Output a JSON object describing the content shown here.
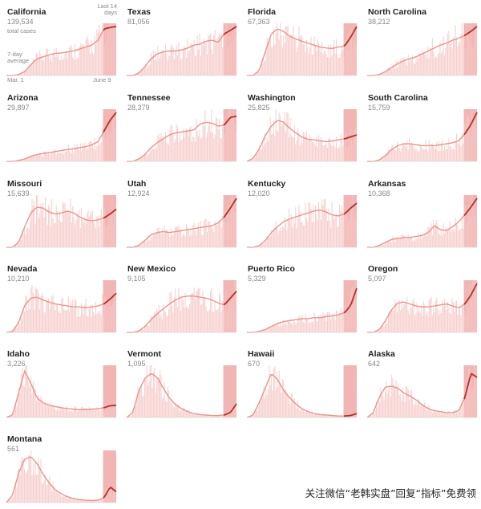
{
  "legend": {
    "total_cases": "total cases",
    "avg": "7-day average",
    "last": "Last 14 days",
    "start": "Mar. 1",
    "end": "June 9"
  },
  "colors": {
    "bar": "#f6cfcd",
    "recent_bg": "#eda3a1",
    "line_early": "#e8958f",
    "line_recent": "#b5312a",
    "baseline": "#d8d8d8"
  },
  "watermark": "关注微信“老韩实盘”回复“指标”免费领",
  "chart_data": {
    "type": "bar",
    "x_range": [
      "Mar. 1",
      "June 9"
    ],
    "recent_window_days": 14,
    "grid": false,
    "panels": [
      {
        "state": "California",
        "cases": "139,534",
        "trend": [
          0,
          0,
          2,
          8,
          22,
          34,
          38,
          42,
          45,
          46,
          48,
          50,
          54,
          58,
          62,
          72,
          95,
          98,
          100
        ]
      },
      {
        "state": "Texas",
        "cases": "81,056",
        "trend": [
          0,
          0,
          5,
          18,
          34,
          44,
          48,
          50,
          50,
          52,
          56,
          62,
          64,
          70,
          72,
          68,
          85,
          92,
          100
        ]
      },
      {
        "state": "Florida",
        "cases": "67,363",
        "trend": [
          0,
          0,
          10,
          48,
          85,
          95,
          90,
          80,
          75,
          70,
          66,
          62,
          58,
          56,
          55,
          58,
          60,
          78,
          100
        ]
      },
      {
        "state": "North Carolina",
        "cases": "38,212",
        "trend": [
          0,
          0,
          2,
          8,
          16,
          24,
          30,
          34,
          38,
          44,
          50,
          56,
          62,
          66,
          72,
          76,
          82,
          90,
          100
        ]
      },
      {
        "state": "Arizona",
        "cases": "29,897",
        "trend": [
          0,
          0,
          2,
          5,
          10,
          14,
          16,
          18,
          20,
          22,
          24,
          26,
          28,
          30,
          34,
          40,
          62,
          84,
          100
        ]
      },
      {
        "state": "Tennessee",
        "cases": "28,379",
        "trend": [
          0,
          0,
          5,
          14,
          28,
          38,
          46,
          54,
          58,
          60,
          62,
          64,
          76,
          80,
          78,
          72,
          74,
          90,
          92
        ]
      },
      {
        "state": "Washington",
        "cases": "25,825",
        "trend": [
          0,
          6,
          25,
          52,
          72,
          84,
          80,
          68,
          58,
          50,
          45,
          44,
          42,
          40,
          42,
          44,
          46,
          50,
          54
        ]
      },
      {
        "state": "South Carolina",
        "cases": "15,759",
        "trend": [
          0,
          0,
          3,
          12,
          24,
          32,
          36,
          36,
          34,
          32,
          32,
          32,
          34,
          36,
          38,
          42,
          56,
          75,
          100
        ]
      },
      {
        "state": "Missouri",
        "cases": "15,639",
        "trend": [
          0,
          0,
          10,
          42,
          70,
          82,
          80,
          72,
          68,
          70,
          74,
          70,
          62,
          56,
          54,
          56,
          60,
          68,
          78
        ]
      },
      {
        "state": "Utah",
        "cases": "12,924",
        "trend": [
          0,
          0,
          4,
          14,
          26,
          30,
          32,
          30,
          32,
          34,
          36,
          38,
          40,
          42,
          44,
          50,
          62,
          80,
          100
        ]
      },
      {
        "state": "Kentucky",
        "cases": "12,020",
        "trend": [
          0,
          0,
          3,
          14,
          30,
          42,
          52,
          58,
          62,
          66,
          70,
          74,
          76,
          72,
          66,
          64,
          68,
          80,
          90
        ]
      },
      {
        "state": "Arkansas",
        "cases": "10,368",
        "trend": [
          0,
          0,
          4,
          10,
          16,
          18,
          20,
          20,
          22,
          24,
          30,
          44,
          36,
          34,
          42,
          52,
          66,
          82,
          100
        ]
      },
      {
        "state": "Nevada",
        "cases": "10,210",
        "trend": [
          0,
          2,
          20,
          55,
          70,
          72,
          66,
          62,
          58,
          56,
          54,
          52,
          52,
          50,
          52,
          54,
          58,
          68,
          80
        ]
      },
      {
        "state": "New Mexico",
        "cases": "9,105",
        "trend": [
          0,
          0,
          3,
          12,
          26,
          38,
          48,
          58,
          66,
          72,
          74,
          74,
          72,
          70,
          66,
          60,
          56,
          70,
          84
        ]
      },
      {
        "state": "Puerto Rico",
        "cases": "5,329",
        "trend": [
          0,
          0,
          2,
          6,
          12,
          18,
          22,
          24,
          26,
          28,
          28,
          30,
          30,
          32,
          34,
          36,
          40,
          55,
          90
        ]
      },
      {
        "state": "Oregon",
        "cases": "5,097",
        "trend": [
          0,
          0,
          6,
          24,
          46,
          60,
          62,
          58,
          54,
          52,
          52,
          54,
          56,
          58,
          54,
          50,
          58,
          76,
          100
        ]
      },
      {
        "state": "Idaho",
        "cases": "3,226",
        "trend": [
          0,
          5,
          50,
          95,
          70,
          40,
          30,
          25,
          22,
          20,
          18,
          17,
          16,
          16,
          17,
          18,
          20,
          24,
          25
        ]
      },
      {
        "state": "Vermont",
        "cases": "1,095",
        "trend": [
          0,
          10,
          55,
          80,
          90,
          82,
          60,
          40,
          26,
          18,
          12,
          8,
          6,
          5,
          4,
          4,
          5,
          10,
          28
        ]
      },
      {
        "state": "Hawaii",
        "cases": "670",
        "trend": [
          0,
          5,
          30,
          60,
          90,
          78,
          56,
          40,
          28,
          18,
          12,
          8,
          6,
          5,
          4,
          3,
          3,
          4,
          8
        ]
      },
      {
        "state": "Alaska",
        "cases": "642",
        "trend": [
          0,
          10,
          42,
          62,
          64,
          60,
          50,
          44,
          36,
          26,
          18,
          14,
          12,
          10,
          10,
          14,
          40,
          90,
          82
        ]
      },
      {
        "state": "Montana",
        "cases": "561",
        "trend": [
          0,
          15,
          60,
          88,
          94,
          80,
          58,
          40,
          26,
          18,
          12,
          8,
          6,
          5,
          4,
          5,
          10,
          32,
          22
        ]
      }
    ]
  }
}
